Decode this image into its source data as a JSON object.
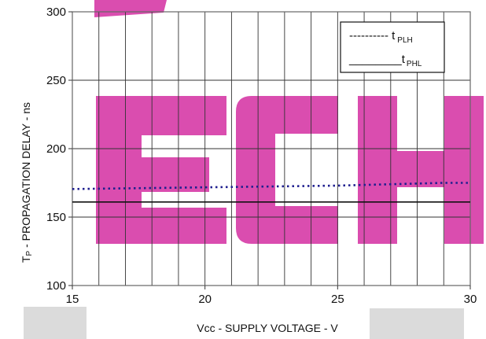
{
  "chart_data": {
    "type": "line",
    "title": "",
    "xlabel": "Vcc - SUPPLY VOLTAGE - V",
    "ylabel": "TP - PROPAGATION DELAY - ns",
    "xlim": [
      15,
      30
    ],
    "ylim": [
      100,
      300
    ],
    "x_ticks": [
      "15",
      "20",
      "25",
      "30"
    ],
    "y_ticks": [
      "300",
      "250",
      "200",
      "150",
      "100"
    ],
    "grid": true,
    "legend_position": "top-right",
    "series": [
      {
        "name": "tPLH",
        "style": "dotted",
        "color": "#1f1f8f",
        "x": [
          15,
          17,
          19,
          21,
          23,
          25,
          27,
          29,
          30
        ],
        "y": [
          170.5,
          171,
          171.5,
          172,
          172.5,
          173,
          174,
          175,
          175
        ]
      },
      {
        "name": "tPHL",
        "style": "solid",
        "color": "#111111",
        "x": [
          15,
          20,
          25,
          30
        ],
        "y": [
          161,
          161,
          161,
          161
        ]
      }
    ]
  },
  "axes": {
    "y_title_main": "T",
    "y_title_sub": "P",
    "y_title_rest": " - PROPAGATION DELAY - ns",
    "x_title_main": "Vcc - SUPPLY VOLTAGE - V"
  },
  "legend": {
    "items": [
      {
        "prefix": "---------- t",
        "sub": "PLH"
      },
      {
        "prefix": "________t",
        "sub": "PHL"
      }
    ]
  },
  "colors": {
    "watermark": "#d63aa6",
    "watermark_gray": "#b8b8b8",
    "grid": "#333333",
    "frame": "#666666"
  }
}
